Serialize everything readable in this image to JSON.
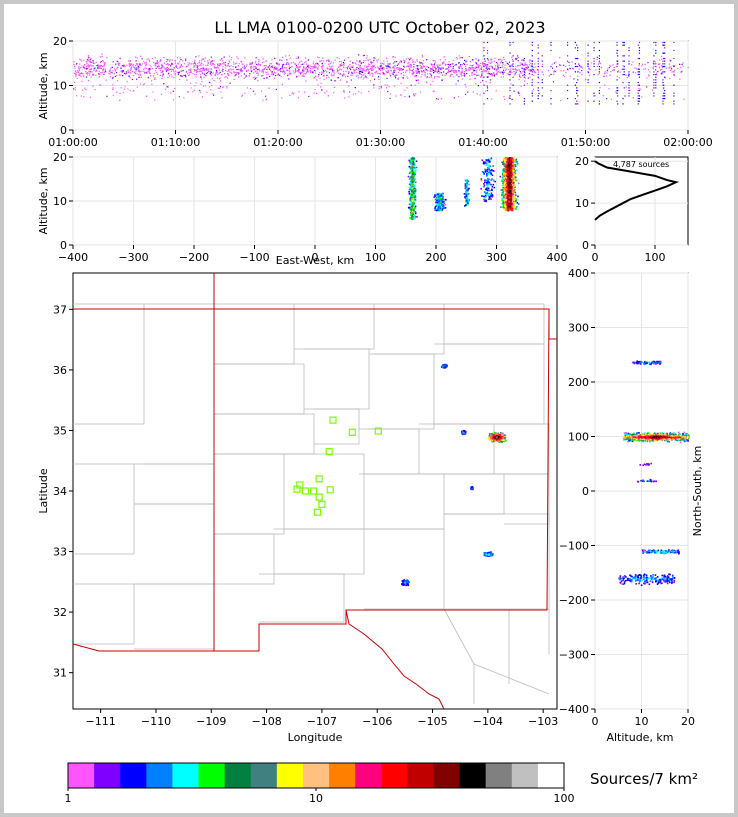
{
  "title": "LL LMA 0100-0200 UTC October 02, 2023",
  "colorbar": {
    "label": "Sources/7 km²",
    "ticks": [
      "1",
      "10",
      "100"
    ],
    "colors": [
      "#ff55ff",
      "#8000ff",
      "#0000ff",
      "#0080ff",
      "#00ffff",
      "#00ff00",
      "#008040",
      "#408080",
      "#ffff00",
      "#ffc080",
      "#ff8000",
      "#ff0080",
      "#ff0000",
      "#c00000",
      "#800000",
      "#000000",
      "#808080",
      "#c0c0c0",
      "#ffffff"
    ]
  },
  "source_count": "4,787 sources",
  "chart_data": [
    {
      "id": "time-height",
      "type": "scatter",
      "ylabel": "Altitude, km",
      "xticks": [
        "01:00:00",
        "01:10:00",
        "01:20:00",
        "01:30:00",
        "01:40:00",
        "01:50:00",
        "02:00:00"
      ],
      "yticks": [
        "0",
        "10",
        "20"
      ],
      "xlim_min": [
        0,
        60
      ],
      "ylim": [
        0,
        20
      ]
    },
    {
      "id": "east-west-altitude",
      "type": "heatmap",
      "xlabel": "East-West, km",
      "ylabel": "Altitude, km",
      "xticks": [
        "−400",
        "−300",
        "−200",
        "−100",
        "0",
        "100",
        "200",
        "300",
        "400"
      ],
      "yticks": [
        "0",
        "10",
        "20"
      ],
      "xlim": [
        -400,
        400
      ],
      "ylim": [
        0,
        20
      ]
    },
    {
      "id": "altitude-histogram",
      "type": "line",
      "xticks": [
        "0",
        "100"
      ],
      "yticks": [
        "0",
        "10",
        "20"
      ],
      "xlim": [
        0,
        155
      ],
      "ylim": [
        0,
        21
      ],
      "profile": [
        [
          0,
          6
        ],
        [
          8,
          7
        ],
        [
          20,
          8
        ],
        [
          40,
          9.5
        ],
        [
          60,
          11
        ],
        [
          80,
          12
        ],
        [
          100,
          13
        ],
        [
          120,
          14
        ],
        [
          135,
          15
        ],
        [
          120,
          15.5
        ],
        [
          100,
          16.5
        ],
        [
          60,
          17.5
        ],
        [
          20,
          18.5
        ],
        [
          5,
          19.5
        ],
        [
          0,
          20
        ]
      ]
    },
    {
      "id": "plan-view",
      "type": "heatmap",
      "xlabel": "Longitude",
      "ylabel": "Latitude",
      "xticks": [
        "−111",
        "−110",
        "−109",
        "−108",
        "−107",
        "−106",
        "−105",
        "−104",
        "−103"
      ],
      "yticks": [
        "31",
        "32",
        "33",
        "34",
        "35",
        "36",
        "37"
      ],
      "xlim": [
        -111.5,
        -102.75
      ],
      "ylim": [
        30.4,
        37.6
      ],
      "stations": [
        [
          -106.8,
          35.17
        ],
        [
          -106.45,
          34.97
        ],
        [
          -105.98,
          34.99
        ],
        [
          -106.87,
          34.65
        ],
        [
          -107.05,
          34.2
        ],
        [
          -107.4,
          34.1
        ],
        [
          -107.45,
          34.03
        ],
        [
          -107.3,
          34.0
        ],
        [
          -107.15,
          34.0
        ],
        [
          -106.85,
          34.02
        ],
        [
          -107.05,
          33.9
        ],
        [
          -107.0,
          33.78
        ],
        [
          -107.08,
          33.65
        ]
      ]
    },
    {
      "id": "altitude-north-south",
      "type": "heatmap",
      "xlabel": "Altitude, km",
      "ylabel": "North-South, km",
      "xticks": [
        "0",
        "10",
        "20"
      ],
      "yticks": [
        "−400",
        "−300",
        "−200",
        "−100",
        "0",
        "100",
        "200",
        "300",
        "400"
      ],
      "xlim": [
        0,
        20
      ],
      "ylim": [
        -400,
        400
      ]
    }
  ]
}
